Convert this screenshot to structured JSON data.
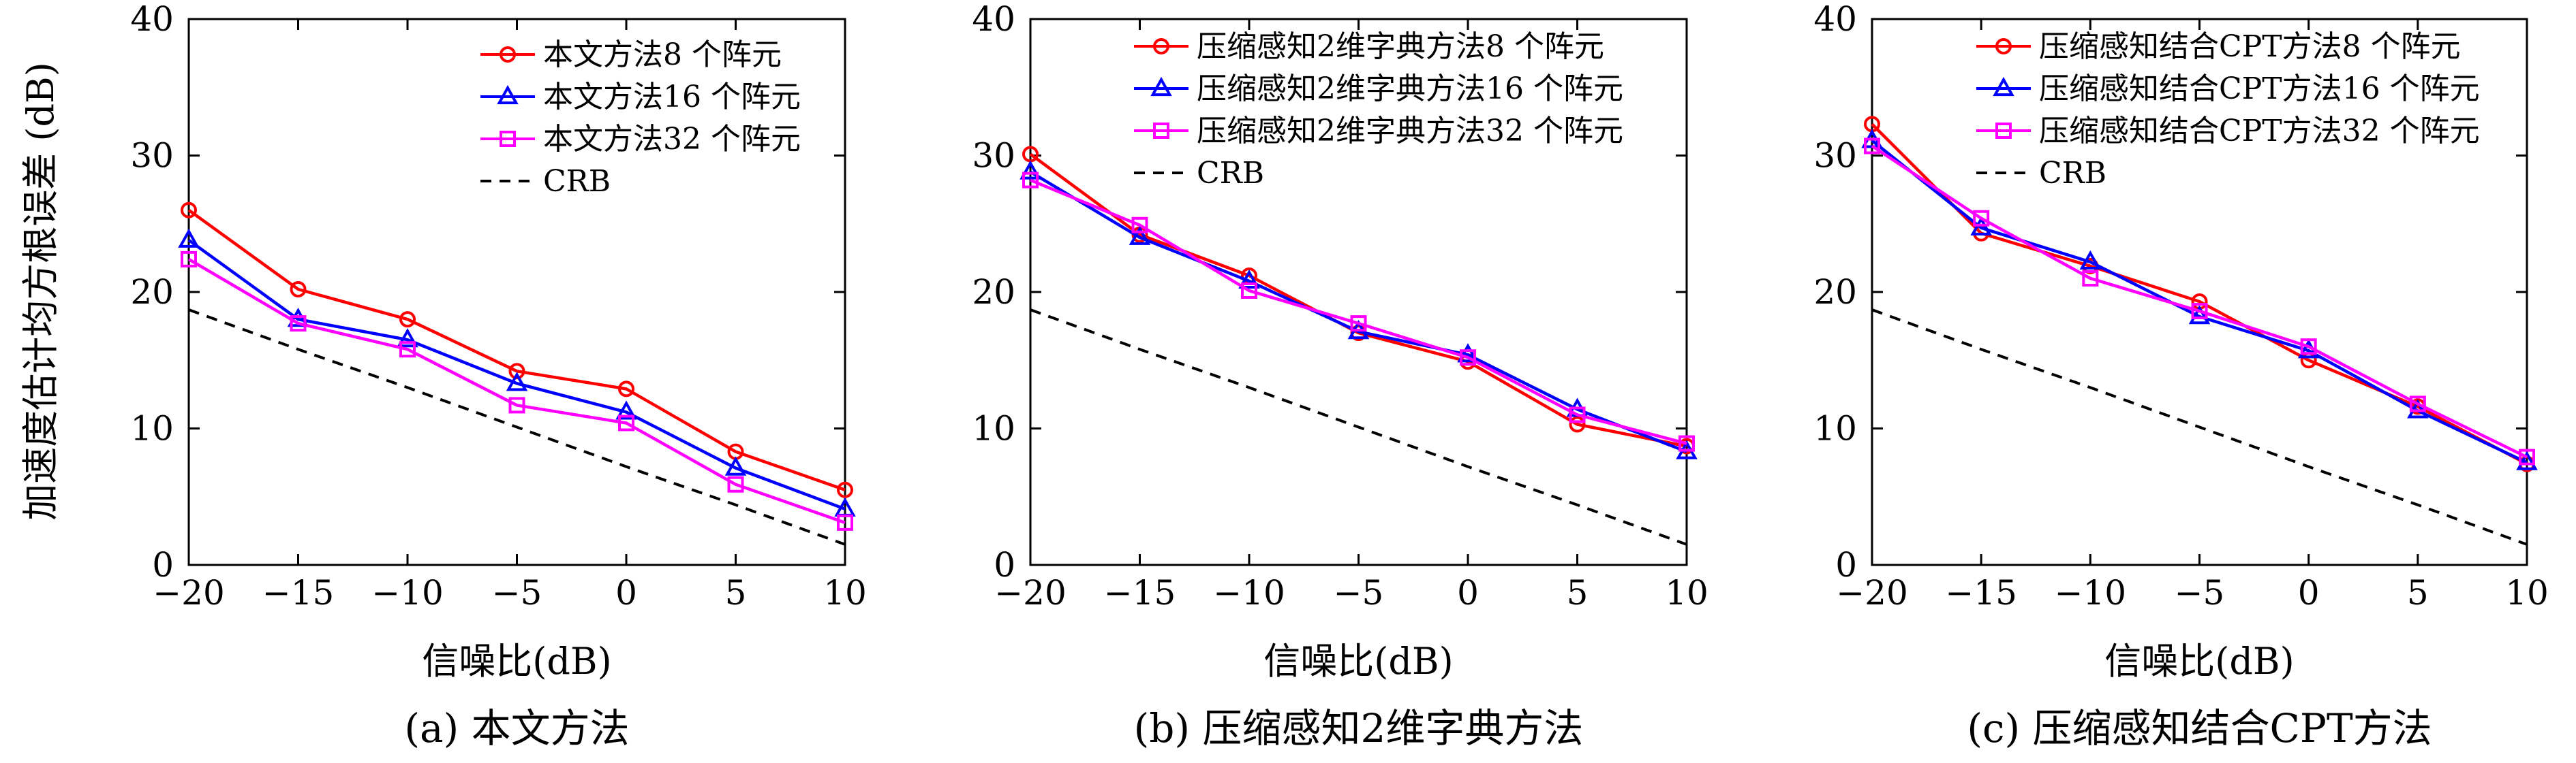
{
  "y_axis_label": "加速度估计均方根误差 (dB)",
  "chart_data": [
    {
      "type": "line",
      "caption": "(a) 本文方法",
      "xlabel": "信噪比(dB)",
      "ylabel": "加速度估计均方根误差 (dB)",
      "x": [
        -20,
        -15,
        -10,
        -5,
        0,
        5,
        10
      ],
      "xlim": [
        -20,
        10
      ],
      "ylim": [
        0,
        40
      ],
      "xticks": [
        "−20",
        "−15",
        "−10",
        "−5",
        "0",
        "5",
        "10"
      ],
      "yticks": [
        "0",
        "10",
        "20",
        "30",
        "40"
      ],
      "legend_position": "top-right",
      "series": [
        {
          "name": "本文方法8 个阵元",
          "values": [
            26.0,
            20.2,
            18.0,
            14.2,
            12.9,
            8.3,
            5.5
          ],
          "color": "#ff0000",
          "marker": "circle"
        },
        {
          "name": "本文方法16 个阵元",
          "values": [
            23.8,
            18.0,
            16.5,
            13.3,
            11.2,
            7.1,
            4.1
          ],
          "color": "#0000ff",
          "marker": "triangle"
        },
        {
          "name": "本文方法32 个阵元",
          "values": [
            22.4,
            17.7,
            15.8,
            11.7,
            10.4,
            5.9,
            3.1
          ],
          "color": "#ff00ff",
          "marker": "square"
        },
        {
          "name": "CRB",
          "values": [
            18.7,
            15.8,
            13.0,
            10.1,
            7.2,
            4.4,
            1.5
          ],
          "color": "#000000",
          "marker": "none",
          "dashed": true
        }
      ]
    },
    {
      "type": "line",
      "caption": "(b) 压缩感知2维字典方法",
      "xlabel": "信噪比(dB)",
      "x": [
        -20,
        -15,
        -10,
        -5,
        0,
        5,
        10
      ],
      "xlim": [
        -20,
        10
      ],
      "ylim": [
        0,
        40
      ],
      "xticks": [
        "−20",
        "−15",
        "−10",
        "−5",
        "0",
        "5",
        "10"
      ],
      "yticks": [
        "0",
        "10",
        "20",
        "30",
        "40"
      ],
      "legend_position": "top-right",
      "series": [
        {
          "name": "压缩感知2维字典方法8 个阵元",
          "values": [
            30.1,
            24.2,
            21.2,
            17.0,
            14.9,
            10.3,
            8.7
          ],
          "color": "#ff0000",
          "marker": "circle"
        },
        {
          "name": "压缩感知2维字典方法16 个阵元",
          "values": [
            28.8,
            24.0,
            20.8,
            17.1,
            15.4,
            11.4,
            8.3
          ],
          "color": "#0000ff",
          "marker": "triangle"
        },
        {
          "name": "压缩感知2维字典方法32 个阵元",
          "values": [
            28.2,
            24.9,
            20.1,
            17.7,
            15.2,
            11.0,
            8.9
          ],
          "color": "#ff00ff",
          "marker": "square"
        },
        {
          "name": "CRB",
          "values": [
            18.7,
            15.8,
            13.0,
            10.1,
            7.2,
            4.4,
            1.5
          ],
          "color": "#000000",
          "marker": "none",
          "dashed": true
        }
      ]
    },
    {
      "type": "line",
      "caption": "(c) 压缩感知结合CPT方法",
      "xlabel": "信噪比(dB)",
      "x": [
        -20,
        -15,
        -10,
        -5,
        0,
        5,
        10
      ],
      "xlim": [
        -20,
        10
      ],
      "ylim": [
        0,
        40
      ],
      "xticks": [
        "−20",
        "−15",
        "−10",
        "−5",
        "0",
        "5",
        "10"
      ],
      "yticks": [
        "0",
        "10",
        "20",
        "30",
        "40"
      ],
      "legend_position": "top-right",
      "series": [
        {
          "name": "压缩感知结合CPT方法8 个阵元",
          "values": [
            32.3,
            24.3,
            21.9,
            19.3,
            15.0,
            11.6,
            7.4
          ],
          "color": "#ff0000",
          "marker": "circle"
        },
        {
          "name": "压缩感知结合CPT方法16 个阵元",
          "values": [
            31.1,
            24.7,
            22.2,
            18.2,
            15.7,
            11.3,
            7.5
          ],
          "color": "#0000ff",
          "marker": "triangle"
        },
        {
          "name": "压缩感知结合CPT方法32 个阵元",
          "values": [
            30.7,
            25.4,
            21.0,
            18.6,
            16.0,
            11.8,
            7.9
          ],
          "color": "#ff00ff",
          "marker": "square"
        },
        {
          "name": "CRB",
          "values": [
            18.7,
            15.8,
            13.0,
            10.1,
            7.2,
            4.4,
            1.5
          ],
          "color": "#000000",
          "marker": "none",
          "dashed": true
        }
      ]
    }
  ]
}
